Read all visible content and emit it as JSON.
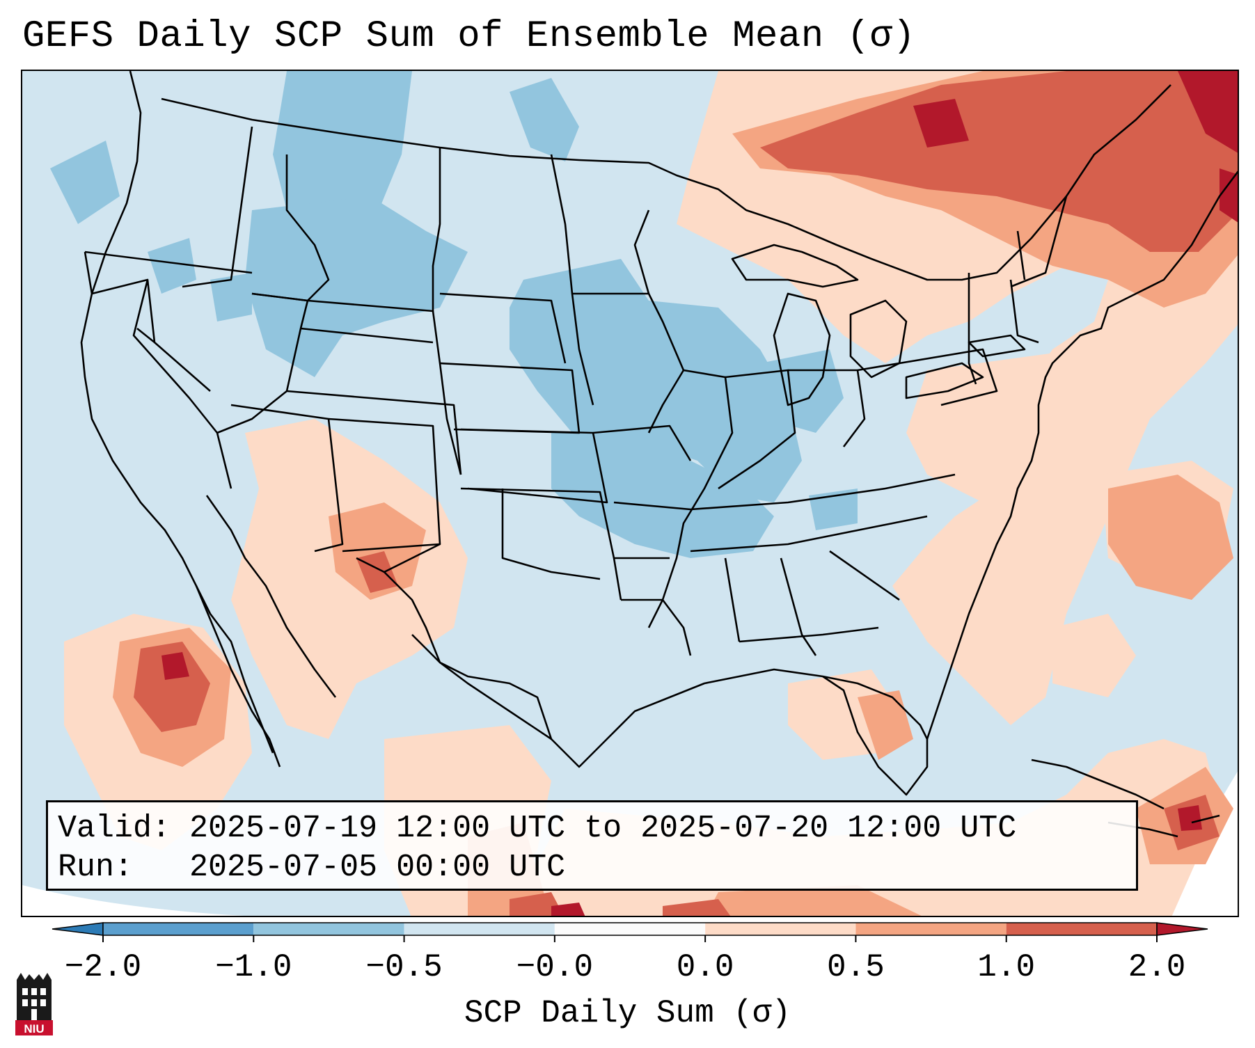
{
  "title": "GEFS Daily SCP Sum of Ensemble Mean (σ)",
  "info": {
    "valid_line": "Valid: 2025-07-19 12:00 UTC to 2025-07-20 12:00 UTC",
    "run_line": "Run:   2025-07-05 00:00 UTC"
  },
  "colorbar": {
    "label": "SCP Daily Sum (σ)",
    "ticks": [
      "−2.0",
      "−1.0",
      "−0.5",
      "−0.0",
      "0.0",
      "0.5",
      "1.0",
      "2.0"
    ],
    "bins": [
      {
        "color": "#2c7bb6"
      },
      {
        "color": "#5b9fce"
      },
      {
        "color": "#92c5de"
      },
      {
        "color": "#d1e5f0"
      },
      {
        "color": "#fbfbfb"
      },
      {
        "color": "#fddbc7"
      },
      {
        "color": "#f4a582"
      },
      {
        "color": "#d6604d"
      },
      {
        "color": "#b2182b"
      }
    ]
  },
  "logo": {
    "text": "NIU",
    "color": "#c8102e"
  }
}
